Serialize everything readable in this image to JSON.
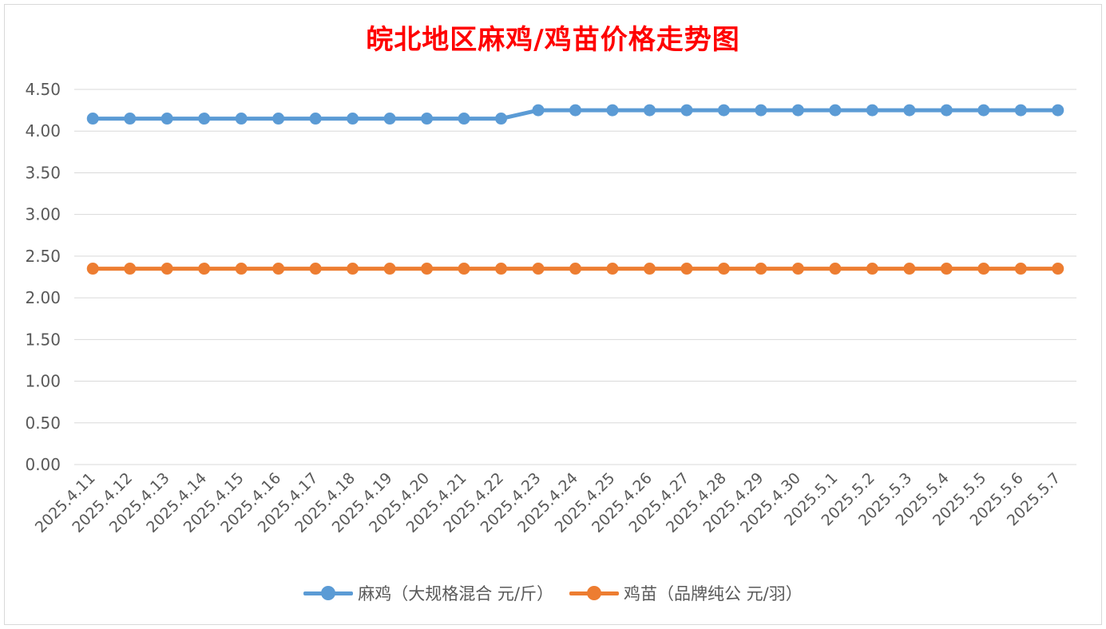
{
  "colors": {
    "title": "#FF0000",
    "series1": "#5B9BD5",
    "series2": "#ED7D31",
    "grid": "#D9D9D9",
    "text": "#595959"
  },
  "chart_data": {
    "type": "line",
    "title": "皖北地区麻鸡/鸡苗价格走势图",
    "xlabel": "",
    "ylabel": "",
    "ylim": [
      0,
      4.5
    ],
    "yticks": [
      "0.00",
      "0.50",
      "1.00",
      "1.50",
      "2.00",
      "2.50",
      "3.00",
      "3.50",
      "4.00",
      "4.50"
    ],
    "grid": true,
    "legend": "bottom",
    "categories": [
      "2025.4.11",
      "2025.4.12",
      "2025.4.13",
      "2025.4.14",
      "2025.4.15",
      "2025.4.16",
      "2025.4.17",
      "2025.4.18",
      "2025.4.19",
      "2025.4.20",
      "2025.4.21",
      "2025.4.22",
      "2025.4.23",
      "2025.4.24",
      "2025.4.25",
      "2025.4.26",
      "2025.4.27",
      "2025.4.28",
      "2025.4.29",
      "2025.4.30",
      "2025.5.1",
      "2025.5.2",
      "2025.5.3",
      "2025.5.4",
      "2025.5.5",
      "2025.5.6",
      "2025.5.7"
    ],
    "series": [
      {
        "name": "麻鸡（大规格混合 元/斤）",
        "color": "#5B9BD5",
        "values": [
          4.15,
          4.15,
          4.15,
          4.15,
          4.15,
          4.15,
          4.15,
          4.15,
          4.15,
          4.15,
          4.15,
          4.15,
          4.25,
          4.25,
          4.25,
          4.25,
          4.25,
          4.25,
          4.25,
          4.25,
          4.25,
          4.25,
          4.25,
          4.25,
          4.25,
          4.25,
          4.25
        ]
      },
      {
        "name": "鸡苗（品牌纯公 元/羽）",
        "color": "#ED7D31",
        "values": [
          2.35,
          2.35,
          2.35,
          2.35,
          2.35,
          2.35,
          2.35,
          2.35,
          2.35,
          2.35,
          2.35,
          2.35,
          2.35,
          2.35,
          2.35,
          2.35,
          2.35,
          2.35,
          2.35,
          2.35,
          2.35,
          2.35,
          2.35,
          2.35,
          2.35,
          2.35,
          2.35
        ]
      }
    ]
  }
}
